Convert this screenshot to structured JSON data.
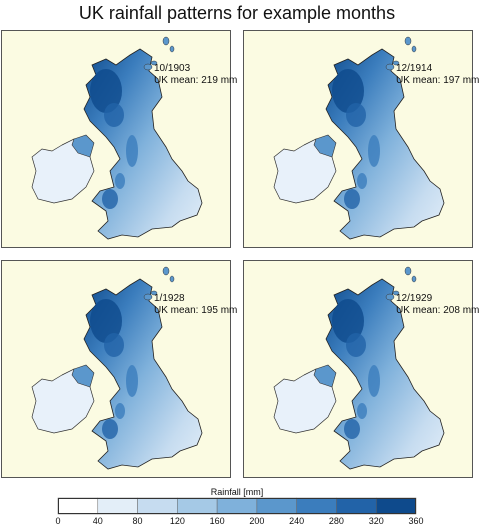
{
  "title": "UK rainfall patterns for example months",
  "panels": [
    {
      "date": "10/1903",
      "mean_label": "UK mean: 219 mm",
      "mean_mm": 219
    },
    {
      "date": "12/1914",
      "mean_label": "UK mean: 197 mm",
      "mean_mm": 197
    },
    {
      "date": "1/1928",
      "mean_label": "UK mean: 195 mm",
      "mean_mm": 195
    },
    {
      "date": "12/1929",
      "mean_label": "UK mean: 208 mm",
      "mean_mm": 208
    }
  ],
  "colorbar": {
    "label": "Rainfall [mm]",
    "ticks": [
      "0",
      "40",
      "80",
      "120",
      "160",
      "200",
      "240",
      "280",
      "320",
      "360"
    ],
    "colors": [
      "#ffffff",
      "#e3eef8",
      "#c6dcf0",
      "#a5c9e6",
      "#7fb1db",
      "#5b97cc",
      "#3b7dbd",
      "#2263a8",
      "#0e4a8c"
    ]
  },
  "colors": {
    "ocean": "#fbfbe2",
    "land_wet": "#0e4a8c",
    "land_dry": "#c6dcf0",
    "ireland": "#e8f1fa"
  }
}
